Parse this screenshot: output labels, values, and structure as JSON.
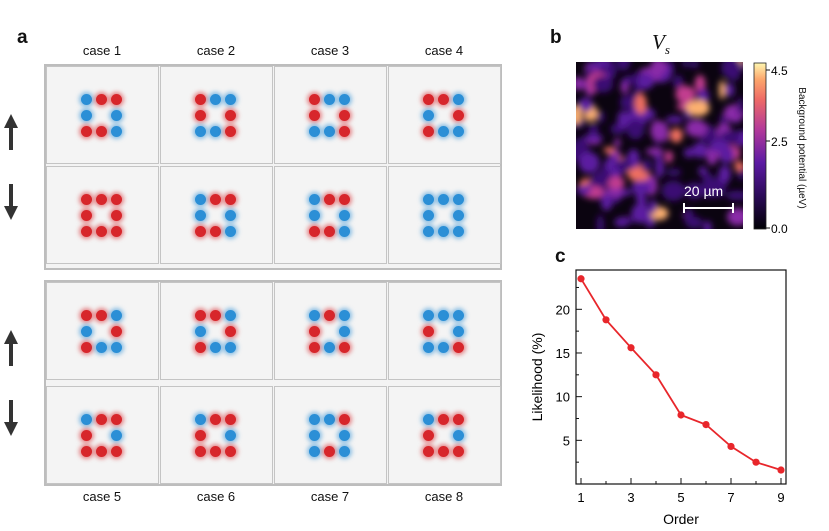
{
  "panel_a": {
    "letter": "a",
    "top_labels": [
      "case 1",
      "case 2",
      "case 3",
      "case 4"
    ],
    "bottom_labels": [
      "case 5",
      "case 6",
      "case 7",
      "case 8"
    ]
  },
  "panel_b": {
    "letter": "b",
    "title": "V",
    "title_sub": "s",
    "scalebar_label": "20 µm",
    "colorbar_ticks": [
      "4.5",
      "2.5",
      "0.0"
    ],
    "colorbar_label": "Background potential (µeV)"
  },
  "panel_c": {
    "letter": "c"
  },
  "colors": {
    "red": "#d7262b",
    "blue": "#2b8fd6",
    "line": "#e8262b"
  },
  "chart_data": {
    "type": "line",
    "x": [
      1,
      2,
      3,
      4,
      5,
      6,
      7,
      8,
      9
    ],
    "values": [
      23.5,
      18.8,
      15.6,
      12.5,
      7.9,
      6.8,
      4.3,
      2.5,
      1.6
    ],
    "xlabel": "Order",
    "ylabel": "Likelihood (%)",
    "xticks": [
      "1",
      "3",
      "5",
      "7",
      "9"
    ],
    "yticks": [
      "5",
      "10",
      "15",
      "20"
    ],
    "xlim": [
      0.8,
      9.2
    ],
    "ylim": [
      0,
      24.5
    ]
  }
}
